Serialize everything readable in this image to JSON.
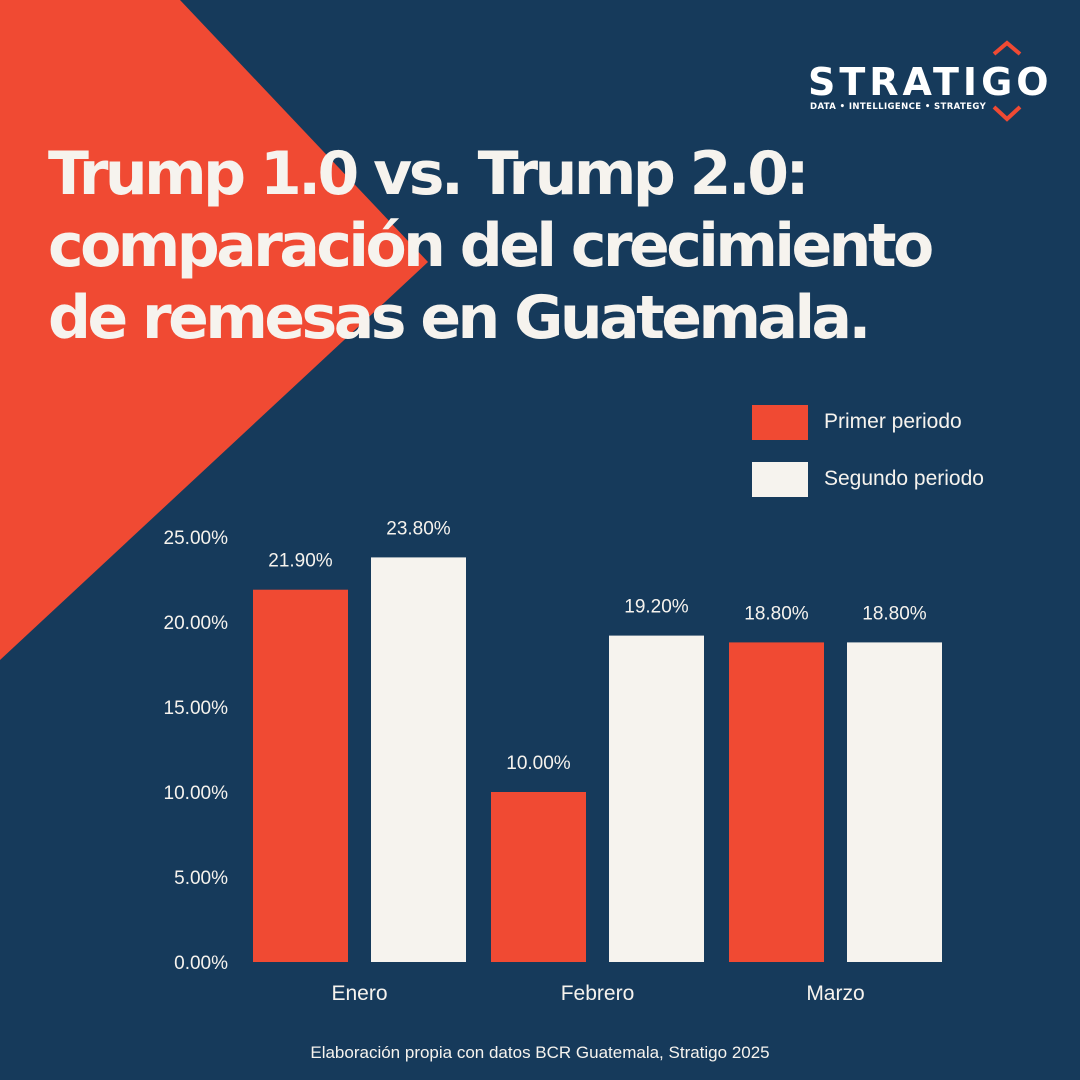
{
  "brand": {
    "name": "STRATIGO",
    "tagline": "DATA • INTELLIGENCE • STRATEGY"
  },
  "title": "Trump 1.0 vs. Trump 2.0: comparación del crecimiento de remesas en Guatemala.",
  "footer": "Elaboración propia con datos BCR Guatemala, Stratigo 2025",
  "colors": {
    "background": "#163a5b",
    "accent": "#f04a33",
    "light": "#f6f3ee"
  },
  "chart_data": {
    "type": "bar",
    "categories": [
      "Enero",
      "Febrero",
      "Marzo"
    ],
    "series": [
      {
        "name": "Primer periodo",
        "color": "#f04a33",
        "values": [
          21.9,
          10.0,
          18.8
        ],
        "labels": [
          "21.90%",
          "10.00%",
          "18.80%"
        ]
      },
      {
        "name": "Segundo periodo",
        "color": "#f6f3ee",
        "values": [
          23.8,
          19.2,
          18.8
        ],
        "labels": [
          "23.80%",
          "19.20%",
          "18.80%"
        ]
      }
    ],
    "ylim": [
      0,
      25
    ],
    "yticks": [
      0,
      5,
      10,
      15,
      20,
      25
    ],
    "ytick_labels": [
      "0.00%",
      "5.00%",
      "10.00%",
      "15.00%",
      "20.00%",
      "25.00%"
    ],
    "xlabel": "",
    "ylabel": "",
    "grid": false,
    "legend_position": "top-right"
  }
}
